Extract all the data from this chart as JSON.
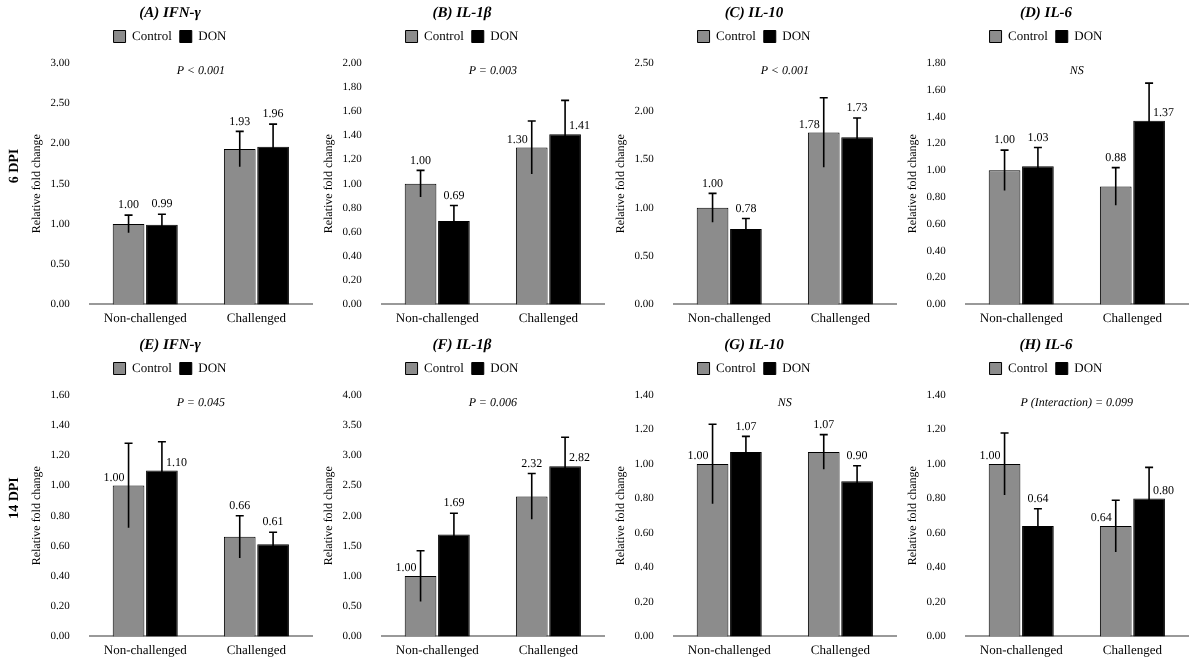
{
  "chart_data": [
    {
      "type": "bar",
      "title": "(A) IFN-γ",
      "ylabel": "Relative fold change",
      "categories": [
        "Non-challenged",
        "Challenged"
      ],
      "legend": "top",
      "annotations": [
        "6 DPI",
        "P < 0.001"
      ],
      "series": [
        {
          "name": "Control",
          "color": "#8c8c8c",
          "values": [
            1.0,
            1.93
          ],
          "errors": [
            0.11,
            0.22
          ],
          "value_labels": [
            "1.00",
            "1.93"
          ]
        },
        {
          "name": "DON",
          "color": "#000000",
          "values": [
            0.99,
            1.96
          ],
          "errors": [
            0.13,
            0.28
          ],
          "value_labels": [
            "0.99",
            "1.96"
          ]
        }
      ],
      "ylim": [
        0,
        3
      ],
      "yticks": [
        {
          "value": 0,
          "label": "0.00"
        },
        {
          "value": 0.5,
          "label": "0.50"
        },
        {
          "value": 1,
          "label": "1.00"
        },
        {
          "value": 1.5,
          "label": "1.50"
        },
        {
          "value": 2,
          "label": "2.00"
        },
        {
          "value": 2.5,
          "label": "2.50"
        },
        {
          "value": 3,
          "label": "3.00"
        }
      ]
    },
    {
      "type": "bar",
      "title": "(B) IL-1β",
      "ylabel": "Relative fold change",
      "categories": [
        "Non-challenged",
        "Challenged"
      ],
      "legend": "top",
      "annotations": [
        "P = 0.003"
      ],
      "series": [
        {
          "name": "Control",
          "color": "#8c8c8c",
          "values": [
            1.0,
            1.3
          ],
          "errors": [
            0.11,
            0.22
          ],
          "value_labels": [
            "1.00",
            "1.30"
          ]
        },
        {
          "name": "DON",
          "color": "#000000",
          "values": [
            0.69,
            1.41
          ],
          "errors": [
            0.13,
            0.28
          ],
          "value_labels": [
            "0.69",
            "1.41"
          ]
        }
      ],
      "ylim": [
        0,
        2
      ],
      "yticks": [
        {
          "value": 0,
          "label": "0.00"
        },
        {
          "value": 0.2,
          "label": "0.20"
        },
        {
          "value": 0.4,
          "label": "0.40"
        },
        {
          "value": 0.6,
          "label": "0.60"
        },
        {
          "value": 0.8,
          "label": "0.80"
        },
        {
          "value": 1,
          "label": "1.00"
        },
        {
          "value": 1.2,
          "label": "1.20"
        },
        {
          "value": 1.4,
          "label": "1.40"
        },
        {
          "value": 1.6,
          "label": "1.60"
        },
        {
          "value": 1.8,
          "label": "1.80"
        },
        {
          "value": 2,
          "label": "2.00"
        }
      ]
    },
    {
      "type": "bar",
      "title": "(C) IL-10",
      "ylabel": "Relative fold change",
      "categories": [
        "Non-challenged",
        "Challenged"
      ],
      "legend": "top",
      "annotations": [
        "P < 0.001"
      ],
      "series": [
        {
          "name": "Control",
          "color": "#8c8c8c",
          "values": [
            1.0,
            1.78
          ],
          "errors": [
            0.15,
            0.36
          ],
          "value_labels": [
            "1.00",
            "1.78"
          ]
        },
        {
          "name": "DON",
          "color": "#000000",
          "values": [
            0.78,
            1.73
          ],
          "errors": [
            0.11,
            0.2
          ],
          "value_labels": [
            "0.78",
            "1.73"
          ]
        }
      ],
      "ylim": [
        0,
        2.5
      ],
      "yticks": [
        {
          "value": 0,
          "label": "0.00"
        },
        {
          "value": 0.5,
          "label": "0.50"
        },
        {
          "value": 1,
          "label": "1.00"
        },
        {
          "value": 1.5,
          "label": "1.50"
        },
        {
          "value": 2,
          "label": "2.00"
        },
        {
          "value": 2.5,
          "label": "2.50"
        }
      ]
    },
    {
      "type": "bar",
      "title": "(D) IL-6",
      "ylabel": "Relative fold change",
      "categories": [
        "Non-challenged",
        "Challenged"
      ],
      "legend": "top",
      "annotations": [
        "NS"
      ],
      "series": [
        {
          "name": "Control",
          "color": "#8c8c8c",
          "values": [
            1.0,
            0.88
          ],
          "errors": [
            0.15,
            0.14
          ],
          "value_labels": [
            "1.00",
            "0.88"
          ]
        },
        {
          "name": "DON",
          "color": "#000000",
          "values": [
            1.03,
            1.37
          ],
          "errors": [
            0.14,
            0.28
          ],
          "value_labels": [
            "1.03",
            "1.37"
          ]
        }
      ],
      "ylim": [
        0,
        1.8
      ],
      "yticks": [
        {
          "value": 0,
          "label": "0.00"
        },
        {
          "value": 0.2,
          "label": "0.20"
        },
        {
          "value": 0.4,
          "label": "0.40"
        },
        {
          "value": 0.6,
          "label": "0.60"
        },
        {
          "value": 0.8,
          "label": "0.80"
        },
        {
          "value": 1,
          "label": "1.00"
        },
        {
          "value": 1.2,
          "label": "1.20"
        },
        {
          "value": 1.4,
          "label": "1.40"
        },
        {
          "value": 1.6,
          "label": "1.60"
        },
        {
          "value": 1.8,
          "label": "1.80"
        }
      ]
    },
    {
      "type": "bar",
      "title": "(E) IFN-γ",
      "ylabel": "Relative fold change",
      "categories": [
        "Non-challenged",
        "Challenged"
      ],
      "legend": "top",
      "annotations": [
        "14 DPI",
        "P = 0.045"
      ],
      "series": [
        {
          "name": "Control",
          "color": "#8c8c8c",
          "values": [
            1.0,
            0.66
          ],
          "errors": [
            0.28,
            0.14
          ],
          "value_labels": [
            "1.00",
            "0.66"
          ]
        },
        {
          "name": "DON",
          "color": "#000000",
          "values": [
            1.1,
            0.61
          ],
          "errors": [
            0.19,
            0.08
          ],
          "value_labels": [
            "1.10",
            "0.61"
          ]
        }
      ],
      "ylim": [
        0,
        1.6
      ],
      "yticks": [
        {
          "value": 0,
          "label": "0.00"
        },
        {
          "value": 0.2,
          "label": "0.20"
        },
        {
          "value": 0.4,
          "label": "0.40"
        },
        {
          "value": 0.6,
          "label": "0.60"
        },
        {
          "value": 0.8,
          "label": "0.80"
        },
        {
          "value": 1,
          "label": "1.00"
        },
        {
          "value": 1.2,
          "label": "1.20"
        },
        {
          "value": 1.4,
          "label": "1.40"
        },
        {
          "value": 1.6,
          "label": "1.60"
        }
      ]
    },
    {
      "type": "bar",
      "title": "(F) IL-1β",
      "ylabel": "Relative fold change",
      "categories": [
        "Non-challenged",
        "Challenged"
      ],
      "legend": "top",
      "annotations": [
        "P = 0.006"
      ],
      "series": [
        {
          "name": "Control",
          "color": "#8c8c8c",
          "values": [
            1.0,
            2.32
          ],
          "errors": [
            0.42,
            0.38
          ],
          "value_labels": [
            "1.00",
            "2.32"
          ]
        },
        {
          "name": "DON",
          "color": "#000000",
          "values": [
            1.69,
            2.82
          ],
          "errors": [
            0.35,
            0.48
          ],
          "value_labels": [
            "1.69",
            "2.82"
          ]
        }
      ],
      "ylim": [
        0,
        4
      ],
      "yticks": [
        {
          "value": 0,
          "label": "0.00"
        },
        {
          "value": 0.5,
          "label": "0.50"
        },
        {
          "value": 1,
          "label": "1.00"
        },
        {
          "value": 1.5,
          "label": "1.50"
        },
        {
          "value": 2,
          "label": "2.00"
        },
        {
          "value": 2.5,
          "label": "2.50"
        },
        {
          "value": 3,
          "label": "3.00"
        },
        {
          "value": 3.5,
          "label": "3.50"
        },
        {
          "value": 4,
          "label": "4.00"
        }
      ]
    },
    {
      "type": "bar",
      "title": "(G) IL-10",
      "ylabel": "Relative fold change",
      "categories": [
        "Non-challenged",
        "Challenged"
      ],
      "legend": "top",
      "annotations": [
        "NS"
      ],
      "series": [
        {
          "name": "Control",
          "color": "#8c8c8c",
          "values": [
            1.0,
            1.07
          ],
          "errors": [
            0.23,
            0.1
          ],
          "value_labels": [
            "1.00",
            "1.07"
          ]
        },
        {
          "name": "DON",
          "color": "#000000",
          "values": [
            1.07,
            0.9
          ],
          "errors": [
            0.09,
            0.09
          ],
          "value_labels": [
            "1.07",
            "0.90"
          ]
        }
      ],
      "ylim": [
        0,
        1.4
      ],
      "yticks": [
        {
          "value": 0,
          "label": "0.00"
        },
        {
          "value": 0.2,
          "label": "0.20"
        },
        {
          "value": 0.4,
          "label": "0.40"
        },
        {
          "value": 0.6,
          "label": "0.60"
        },
        {
          "value": 0.8,
          "label": "0.80"
        },
        {
          "value": 1,
          "label": "1.00"
        },
        {
          "value": 1.2,
          "label": "1.20"
        },
        {
          "value": 1.4,
          "label": "1.40"
        }
      ]
    },
    {
      "type": "bar",
      "title": "(H) IL-6",
      "ylabel": "Relative fold change",
      "categories": [
        "Non-challenged",
        "Challenged"
      ],
      "legend": "top",
      "annotations": [
        "P (Interaction) = 0.099"
      ],
      "series": [
        {
          "name": "Control",
          "color": "#8c8c8c",
          "values": [
            1.0,
            0.64
          ],
          "errors": [
            0.18,
            0.15
          ],
          "value_labels": [
            "1.00",
            "0.64"
          ]
        },
        {
          "name": "DON",
          "color": "#000000",
          "values": [
            0.64,
            0.8
          ],
          "errors": [
            0.1,
            0.18
          ],
          "value_labels": [
            "0.64",
            "0.80"
          ]
        }
      ],
      "ylim": [
        0,
        1.4
      ],
      "yticks": [
        {
          "value": 0,
          "label": "0.00"
        },
        {
          "value": 0.2,
          "label": "0.20"
        },
        {
          "value": 0.4,
          "label": "0.40"
        },
        {
          "value": 0.6,
          "label": "0.60"
        },
        {
          "value": 0.8,
          "label": "0.80"
        },
        {
          "value": 1,
          "label": "1.00"
        },
        {
          "value": 1.2,
          "label": "1.20"
        },
        {
          "value": 1.4,
          "label": "1.40"
        }
      ]
    }
  ]
}
